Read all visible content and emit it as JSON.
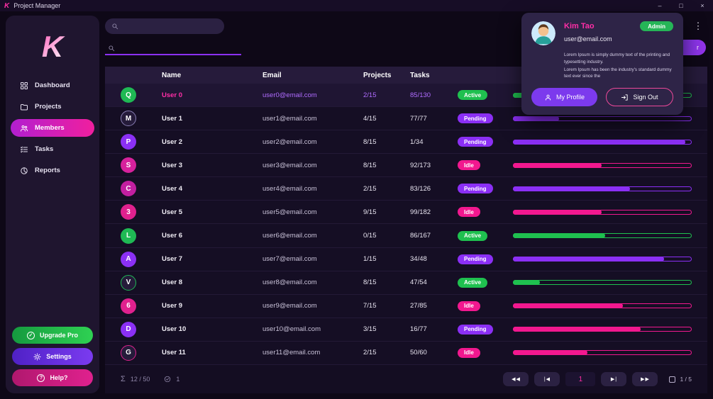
{
  "window": {
    "title": "Project Manager",
    "logo": "K",
    "controls": {
      "minimize": "–",
      "maximize": "□",
      "close": "×"
    }
  },
  "colors": {
    "green": "#1fc04f",
    "purple": "#8b2ff5",
    "magenta": "#f2188f",
    "accent_pink": "#ff2ea6",
    "accent_purple": "#7c3aed"
  },
  "sidebar": {
    "logo": "K",
    "items": [
      {
        "label": "Dashboard",
        "icon": "dashboard-icon",
        "active": false
      },
      {
        "label": "Projects",
        "icon": "folder-icon",
        "active": false
      },
      {
        "label": "Members",
        "icon": "users-icon",
        "active": true
      },
      {
        "label": "Tasks",
        "icon": "tasks-icon",
        "active": false
      },
      {
        "label": "Reports",
        "icon": "reports-icon",
        "active": false
      }
    ],
    "footer": [
      {
        "label": "Upgrade Pro",
        "icon": "check-circle-icon",
        "glyph": "✓",
        "style": "upgrade"
      },
      {
        "label": "Settings",
        "icon": "gear-icon",
        "glyph": "",
        "style": "settings"
      },
      {
        "label": "Help?",
        "icon": "question-circle-icon",
        "glyph": "?",
        "style": "help"
      }
    ]
  },
  "topbar": {
    "search_placeholder": "",
    "menu_icon": "⋮",
    "action_label": "r"
  },
  "filter": {
    "placeholder": ""
  },
  "table": {
    "columns": [
      "Name",
      "Email",
      "Projects",
      "Tasks"
    ],
    "rows": [
      {
        "avatar": "Q",
        "avatar_bg": "#1fb954",
        "avatar_ring": null,
        "name": "User 0",
        "email": "user0@email.com",
        "projects": "2/15",
        "tasks": "85/130",
        "status": "Active",
        "status_key": "green",
        "bar": "green",
        "progress": 65,
        "highlight": true
      },
      {
        "avatar": "M",
        "avatar_bg": null,
        "avatar_ring": "#8a7fb5",
        "name": "User 1",
        "email": "user1@email.com",
        "projects": "4/15",
        "tasks": "77/77",
        "status": "Pending",
        "status_key": "purple",
        "bar": "purple",
        "progress": 26,
        "highlight": false
      },
      {
        "avatar": "P",
        "avatar_bg": "#8b30f5",
        "avatar_ring": null,
        "name": "User 2",
        "email": "user2@email.com",
        "projects": "8/15",
        "tasks": "1/34",
        "status": "Pending",
        "status_key": "purple",
        "bar": "purple",
        "progress": 97,
        "highlight": false
      },
      {
        "avatar": "S",
        "avatar_bg": "#d6219c",
        "avatar_ring": null,
        "name": "User 3",
        "email": "user3@email.com",
        "projects": "8/15",
        "tasks": "92/173",
        "status": "Idle",
        "status_key": "magenta",
        "bar": "magenta",
        "progress": 50,
        "highlight": false
      },
      {
        "avatar": "C",
        "avatar_bg": "#c21fa0",
        "avatar_ring": null,
        "name": "User 4",
        "email": "user4@email.com",
        "projects": "2/15",
        "tasks": "83/126",
        "status": "Pending",
        "status_key": "purple",
        "bar": "purple",
        "progress": 66,
        "highlight": false
      },
      {
        "avatar": "3",
        "avatar_bg": "#e0218e",
        "avatar_ring": null,
        "name": "User 5",
        "email": "user5@email.com",
        "projects": "9/15",
        "tasks": "99/182",
        "status": "Idle",
        "status_key": "magenta",
        "bar": "magenta",
        "progress": 50,
        "highlight": false
      },
      {
        "avatar": "L",
        "avatar_bg": "#1fb954",
        "avatar_ring": null,
        "name": "User 6",
        "email": "user6@email.com",
        "projects": "0/15",
        "tasks": "86/167",
        "status": "Active",
        "status_key": "green",
        "bar": "green",
        "progress": 52,
        "highlight": false
      },
      {
        "avatar": "A",
        "avatar_bg": "#8b30f5",
        "avatar_ring": null,
        "name": "User 7",
        "email": "user7@email.com",
        "projects": "1/15",
        "tasks": "34/48",
        "status": "Pending",
        "status_key": "purple",
        "bar": "purple",
        "progress": 85,
        "highlight": false
      },
      {
        "avatar": "V",
        "avatar_bg": null,
        "avatar_ring": "#1fb954",
        "name": "User 8",
        "email": "user8@email.com",
        "projects": "8/15",
        "tasks": "47/54",
        "status": "Active",
        "status_key": "green",
        "bar": "green",
        "progress": 15,
        "highlight": false
      },
      {
        "avatar": "6",
        "avatar_bg": "#e0218e",
        "avatar_ring": null,
        "name": "User 9",
        "email": "user9@email.com",
        "projects": "7/15",
        "tasks": "27/85",
        "status": "Idle",
        "status_key": "magenta",
        "bar": "magenta",
        "progress": 62,
        "highlight": false
      },
      {
        "avatar": "D",
        "avatar_bg": "#8b30f5",
        "avatar_ring": null,
        "name": "User 10",
        "email": "user10@email.com",
        "projects": "3/15",
        "tasks": "16/77",
        "status": "Pending",
        "status_key": "purple",
        "bar": "magenta",
        "progress": 72,
        "highlight": false
      },
      {
        "avatar": "G",
        "avatar_bg": null,
        "avatar_ring": "#e0218e",
        "name": "User 11",
        "email": "user11@email.com",
        "projects": "2/15",
        "tasks": "50/60",
        "status": "Idle",
        "status_key": "magenta",
        "bar": "magenta",
        "progress": 42,
        "highlight": false
      }
    ]
  },
  "footer": {
    "sum_icon": "Σ",
    "total": "12 / 50",
    "selected": "1",
    "pagination": {
      "first": "◀◀",
      "prev": "|◀",
      "page": "1",
      "next": "▶|",
      "last": "▶▶",
      "indicator": "1 / 5"
    }
  },
  "profile_popup": {
    "name": "Kim Tao",
    "role": "Admin",
    "email": "user@email.com",
    "bio1": "Lorem Ipsum is simply dummy text of the printing and typesetting industry.",
    "bio2": "Lorem Ipsum has been the industry's standard dummy text ever since the",
    "profile_button": "My Profile",
    "signout_button": "Sign Out"
  }
}
